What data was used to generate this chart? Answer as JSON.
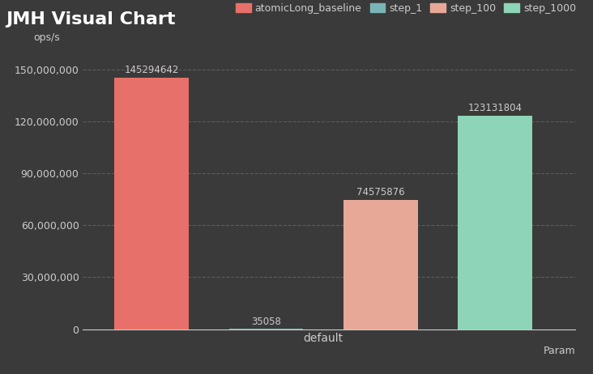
{
  "title": "JMH Visual Chart",
  "background_color": "#3a3a3a",
  "plot_bg_color": "#3a3a3a",
  "ops_label": "ops/s",
  "xlabel": "Param",
  "x_category": "default",
  "series": [
    {
      "label": "atomicLong_baseline",
      "value": 145294642,
      "color": "#e8706a",
      "x": 0
    },
    {
      "label": "step_1",
      "value": 35058,
      "color": "#7ab5b5",
      "x": 1
    },
    {
      "label": "step_100",
      "value": 74575876,
      "color": "#e8a898",
      "x": 2
    },
    {
      "label": "step_1000",
      "value": 123131804,
      "color": "#8dd4b8",
      "x": 3
    }
  ],
  "yticks": [
    0,
    30000000,
    60000000,
    90000000,
    120000000,
    150000000
  ],
  "ytick_labels": [
    "0",
    "30,000,000",
    "60,000,000",
    "90,000,000",
    "120,000,000",
    "150,000,000"
  ],
  "ylim": [
    0,
    162000000
  ],
  "grid_color": "#888888",
  "tick_color": "#cccccc",
  "text_color": "#cccccc",
  "title_color": "#ffffff",
  "legend_color": "#cccccc",
  "bar_width": 0.65,
  "title_fontsize": 16,
  "legend_fontsize": 9,
  "label_fontsize": 8.5,
  "ytick_fontsize": 9,
  "xtick_fontsize": 10
}
